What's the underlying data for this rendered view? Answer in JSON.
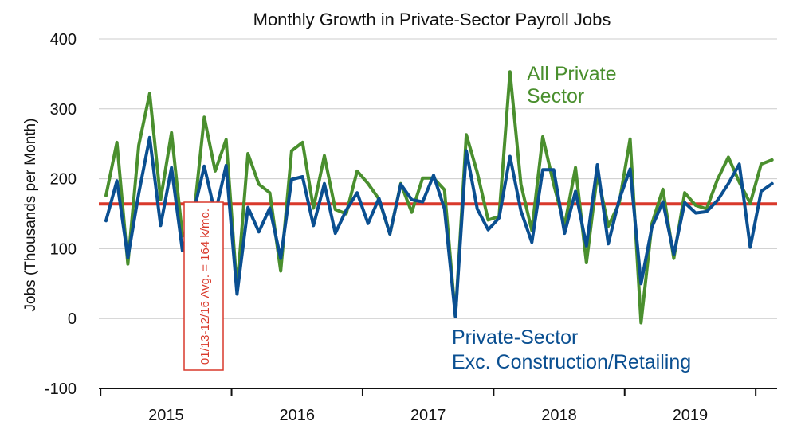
{
  "chart_data": {
    "type": "line",
    "title": "Monthly Growth in Private-Sector Payroll Jobs",
    "ylabel": "Jobs (Thousands per Month)",
    "xlabel": "",
    "ylim": [
      -100,
      400
    ],
    "yticks": [
      400,
      300,
      200,
      100,
      0,
      -100
    ],
    "grid": true,
    "x_start": "2015-01",
    "x_year_labels": [
      "2015",
      "2016",
      "2017",
      "2018",
      "2019"
    ],
    "series": [
      {
        "name": "All Private Sector",
        "name_lines": [
          "All Private",
          "Sector"
        ],
        "color": "#4a8f2e",
        "values": [
          176,
          252,
          78,
          248,
          322,
          170,
          266,
          118,
          140,
          288,
          211,
          256,
          42,
          236,
          192,
          180,
          68,
          240,
          252,
          158,
          233,
          156,
          150,
          211,
          193,
          171,
          121,
          193,
          152,
          201,
          201,
          184,
          3,
          263,
          209,
          141,
          146,
          353,
          192,
          126,
          260,
          192,
          133,
          216,
          80,
          207,
          132,
          165,
          257,
          -6,
          136,
          185,
          86,
          180,
          162,
          157,
          199,
          231,
          195,
          165,
          221,
          227
        ]
      },
      {
        "name": "Private-Sector Exc. Construction/Retailing",
        "name_lines": [
          "Private-Sector",
          "Exc. Construction/Retailing"
        ],
        "color": "#0a4f91",
        "values": [
          140,
          197,
          87,
          179,
          259,
          133,
          216,
          97,
          150,
          218,
          150,
          219,
          35,
          159,
          124,
          158,
          86,
          199,
          203,
          133,
          193,
          122,
          155,
          180,
          136,
          172,
          121,
          192,
          170,
          167,
          205,
          157,
          3,
          240,
          157,
          127,
          144,
          232,
          154,
          109,
          213,
          213,
          122,
          182,
          104,
          220,
          107,
          170,
          214,
          50,
          131,
          167,
          92,
          166,
          151,
          153,
          169,
          193,
          221,
          102,
          182,
          193
        ]
      }
    ],
    "average_line": {
      "value": 164,
      "label": "01/13-12/16 Avg. = 164 k/mo.",
      "color": "#d9392b"
    }
  }
}
